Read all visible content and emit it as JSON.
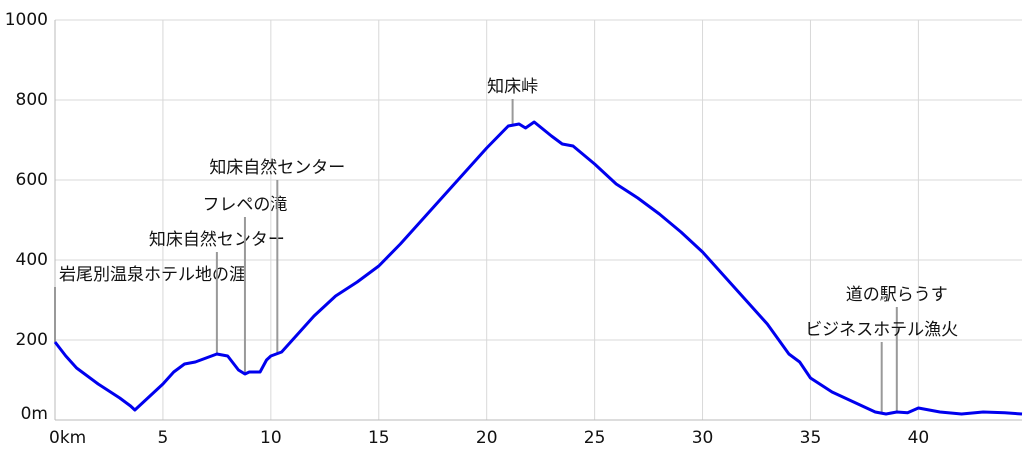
{
  "chart_data": {
    "type": "line",
    "xlim": [
      0,
      44.8
    ],
    "ylim": [
      0,
      1000
    ],
    "xticks": [
      {
        "value": 0,
        "label": "0km"
      },
      5,
      10,
      15,
      20,
      25,
      30,
      35,
      40
    ],
    "yticks": [
      {
        "value": 0,
        "label": "0m"
      },
      200,
      400,
      600,
      800,
      1000
    ],
    "grid": true,
    "series": [
      {
        "color": "#0000ee",
        "x": [
          0,
          0.5,
          1,
          2,
          3,
          3.5,
          3.7,
          4,
          5,
          5.5,
          6,
          6.5,
          7,
          7.5,
          8,
          8.5,
          8.8,
          9,
          9.5,
          9.8,
          10,
          10.5,
          11,
          12,
          13,
          14,
          15,
          16,
          17,
          18,
          19,
          20,
          21,
          21.5,
          21.8,
          22.2,
          23,
          23.5,
          24,
          25,
          26,
          27,
          28,
          29,
          30,
          31,
          32,
          33,
          34,
          34.5,
          35,
          36,
          37,
          38,
          38.5,
          39,
          39.5,
          40,
          41,
          42,
          43,
          44,
          44.8
        ],
        "values": [
          195,
          160,
          130,
          90,
          55,
          35,
          25,
          40,
          90,
          120,
          140,
          145,
          155,
          165,
          160,
          125,
          115,
          120,
          120,
          150,
          160,
          170,
          200,
          260,
          310,
          345,
          385,
          440,
          500,
          560,
          620,
          680,
          735,
          740,
          730,
          745,
          710,
          690,
          685,
          640,
          590,
          555,
          515,
          470,
          420,
          360,
          300,
          240,
          165,
          145,
          105,
          70,
          45,
          20,
          15,
          20,
          18,
          30,
          20,
          15,
          20,
          18,
          15
        ]
      }
    ],
    "annotations": [
      {
        "text": "岩尾別温泉ホテル地の涯",
        "x": 0,
        "y": 195
      },
      {
        "text": "知床自然センター",
        "x": 7.5,
        "y": 165
      },
      {
        "text": "フレペの滝",
        "x": 8.8,
        "y": 115
      },
      {
        "text": "知床自然センター",
        "x": 10.3,
        "y": 165
      },
      {
        "text": "知床峠",
        "x": 21.2,
        "y": 738
      },
      {
        "text": "道の駅らうす",
        "x": 39,
        "y": 20
      },
      {
        "text": "ビジネスホテル漁火",
        "x": 38.3,
        "y": 18
      }
    ]
  }
}
